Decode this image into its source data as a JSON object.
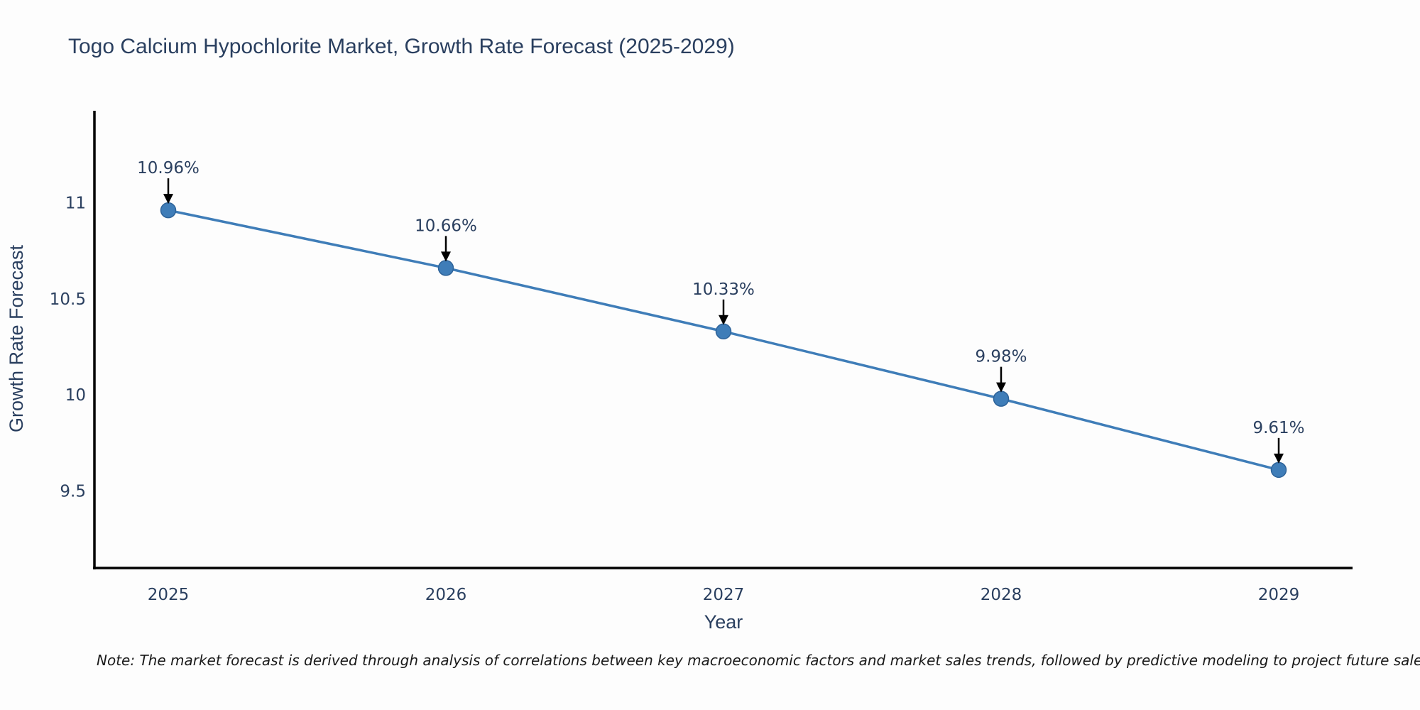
{
  "page": {
    "background": "#fdfdfd"
  },
  "chart_data": {
    "type": "line",
    "title": "Togo Calcium Hypochlorite Market, Growth Rate Forecast (2025-2029)",
    "xlabel": "Year",
    "ylabel": "Growth Rate Forecast",
    "categories": [
      "2025",
      "2026",
      "2027",
      "2028",
      "2029"
    ],
    "values": [
      10.96,
      10.66,
      10.33,
      9.98,
      9.61
    ],
    "point_labels": [
      "10.96%",
      "10.66%",
      "10.33%",
      "9.98%",
      "9.61%"
    ],
    "yticks": [
      11,
      10.5,
      10,
      9.5
    ],
    "ylim": [
      9.1,
      11.47
    ],
    "grid": false,
    "legend": "none",
    "colors": {
      "line": "#3f7db8",
      "marker": "#3f7db8",
      "marker_edge": "#2e6399",
      "arrow": "#000000",
      "axis": "#000000",
      "text": "#2a3f5f",
      "note_text": "#1a1a1a"
    }
  },
  "footnote": {
    "text": "Note: The market forecast is derived through analysis of correlations between key macroeconomic factors and market sales trends, followed by predictive modeling to project future sales."
  }
}
